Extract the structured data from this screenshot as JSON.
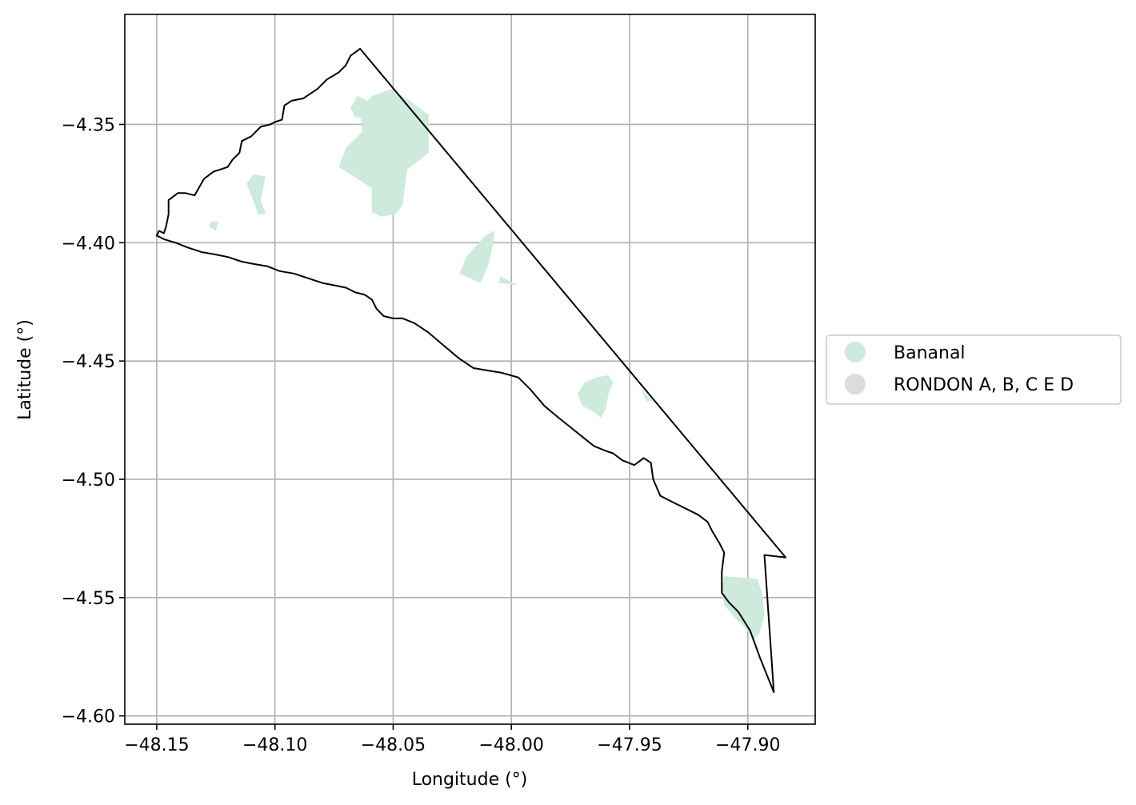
{
  "chart_data": {
    "type": "map",
    "xlabel": "Longitude (°)",
    "ylabel": "Latitude (°)",
    "xlim": [
      -48.1635,
      -47.8715
    ],
    "ylim": [
      -4.6035,
      -4.3035
    ],
    "xticks": [
      -48.15,
      -48.1,
      -48.05,
      -48.0,
      -47.95,
      -47.9
    ],
    "xtick_labels": [
      "−48.15",
      "−48.10",
      "−48.05",
      "−48.00",
      "−47.95",
      "−47.90"
    ],
    "yticks": [
      -4.35,
      -4.4,
      -4.45,
      -4.5,
      -4.55,
      -4.6
    ],
    "ytick_labels": [
      "−4.35",
      "−4.40",
      "−4.45",
      "−4.50",
      "−4.55",
      "−4.60"
    ],
    "grid": true,
    "legend": {
      "placement": "outside-right",
      "entries": [
        {
          "label": "Bananal",
          "color": "#cdeadc"
        },
        {
          "label": "RONDON A, B, C E D",
          "color": "#dcdcdc"
        }
      ]
    },
    "boundary": {
      "stroke": "#000000",
      "points": [
        [
          -48.15,
          -4.397
        ],
        [
          -48.149,
          -4.395
        ],
        [
          -48.147,
          -4.396
        ],
        [
          -48.146,
          -4.393
        ],
        [
          -48.145,
          -4.388
        ],
        [
          -48.145,
          -4.382
        ],
        [
          -48.141,
          -4.379
        ],
        [
          -48.138,
          -4.379
        ],
        [
          -48.134,
          -4.38
        ],
        [
          -48.13,
          -4.373
        ],
        [
          -48.126,
          -4.37
        ],
        [
          -48.123,
          -4.369
        ],
        [
          -48.12,
          -4.368
        ],
        [
          -48.118,
          -4.365
        ],
        [
          -48.115,
          -4.362
        ],
        [
          -48.114,
          -4.357
        ],
        [
          -48.11,
          -4.355
        ],
        [
          -48.106,
          -4.351
        ],
        [
          -48.102,
          -4.35
        ],
        [
          -48.1,
          -4.349
        ],
        [
          -48.097,
          -4.348
        ],
        [
          -48.096,
          -4.342
        ],
        [
          -48.093,
          -4.34
        ],
        [
          -48.088,
          -4.339
        ],
        [
          -48.082,
          -4.335
        ],
        [
          -48.078,
          -4.331
        ],
        [
          -48.073,
          -4.328
        ],
        [
          -48.07,
          -4.325
        ],
        [
          -48.068,
          -4.321
        ],
        [
          -48.064,
          -4.318
        ],
        [
          -47.884,
          -4.533
        ],
        [
          -47.893,
          -4.532
        ],
        [
          -47.889,
          -4.59
        ],
        [
          -47.895,
          -4.575
        ],
        [
          -47.899,
          -4.564
        ],
        [
          -47.904,
          -4.556
        ],
        [
          -47.908,
          -4.552
        ],
        [
          -47.911,
          -4.548
        ],
        [
          -47.911,
          -4.539
        ],
        [
          -47.91,
          -4.531
        ],
        [
          -47.912,
          -4.527
        ],
        [
          -47.915,
          -4.522
        ],
        [
          -47.917,
          -4.518
        ],
        [
          -47.921,
          -4.515
        ],
        [
          -47.927,
          -4.512
        ],
        [
          -47.931,
          -4.51
        ],
        [
          -47.937,
          -4.507
        ],
        [
          -47.94,
          -4.5
        ],
        [
          -47.941,
          -4.493
        ],
        [
          -47.944,
          -4.491
        ],
        [
          -47.948,
          -4.494
        ],
        [
          -47.953,
          -4.492
        ],
        [
          -47.957,
          -4.489
        ],
        [
          -47.96,
          -4.488
        ],
        [
          -47.965,
          -4.486
        ],
        [
          -47.97,
          -4.482
        ],
        [
          -47.975,
          -4.478
        ],
        [
          -47.98,
          -4.474
        ],
        [
          -47.986,
          -4.469
        ],
        [
          -47.992,
          -4.462
        ],
        [
          -47.997,
          -4.457
        ],
        [
          -48.004,
          -4.455
        ],
        [
          -48.01,
          -4.454
        ],
        [
          -48.016,
          -4.453
        ],
        [
          -48.022,
          -4.449
        ],
        [
          -48.028,
          -4.444
        ],
        [
          -48.035,
          -4.438
        ],
        [
          -48.041,
          -4.434
        ],
        [
          -48.046,
          -4.432
        ],
        [
          -48.05,
          -4.432
        ],
        [
          -48.054,
          -4.431
        ],
        [
          -48.057,
          -4.428
        ],
        [
          -48.059,
          -4.424
        ],
        [
          -48.062,
          -4.422
        ],
        [
          -48.066,
          -4.421
        ],
        [
          -48.07,
          -4.419
        ],
        [
          -48.075,
          -4.418
        ],
        [
          -48.08,
          -4.417
        ],
        [
          -48.086,
          -4.415
        ],
        [
          -48.092,
          -4.413
        ],
        [
          -48.098,
          -4.412
        ],
        [
          -48.103,
          -4.41
        ],
        [
          -48.109,
          -4.409
        ],
        [
          -48.114,
          -4.408
        ],
        [
          -48.12,
          -4.406
        ],
        [
          -48.125,
          -4.405
        ],
        [
          -48.131,
          -4.404
        ],
        [
          -48.137,
          -4.402
        ],
        [
          -48.142,
          -4.4
        ],
        [
          -48.147,
          -4.3985
        ],
        [
          -48.15,
          -4.397
        ]
      ]
    },
    "areas": [
      {
        "series": "Bananal",
        "points": [
          [
            -48.059,
            -4.338
          ],
          [
            -48.051,
            -4.335
          ],
          [
            -48.043,
            -4.34
          ],
          [
            -48.035,
            -4.346
          ],
          [
            -48.035,
            -4.362
          ],
          [
            -48.044,
            -4.369
          ],
          [
            -48.045,
            -4.376
          ],
          [
            -48.046,
            -4.384
          ],
          [
            -48.049,
            -4.388
          ],
          [
            -48.055,
            -4.389
          ],
          [
            -48.059,
            -4.387
          ],
          [
            -48.059,
            -4.377
          ],
          [
            -48.065,
            -4.373
          ],
          [
            -48.073,
            -4.368
          ],
          [
            -48.07,
            -4.36
          ],
          [
            -48.063,
            -4.353
          ],
          [
            -48.064,
            -4.344
          ]
        ]
      },
      {
        "series": "Bananal",
        "points": [
          [
            -48.065,
            -4.338
          ],
          [
            -48.061,
            -4.34
          ],
          [
            -48.062,
            -4.347
          ],
          [
            -48.066,
            -4.347
          ],
          [
            -48.068,
            -4.343
          ]
        ]
      },
      {
        "series": "Bananal",
        "points": [
          [
            -48.109,
            -4.371
          ],
          [
            -48.104,
            -4.372
          ],
          [
            -48.106,
            -4.382
          ],
          [
            -48.104,
            -4.388
          ],
          [
            -48.107,
            -4.388
          ],
          [
            -48.11,
            -4.38
          ],
          [
            -48.112,
            -4.375
          ]
        ]
      },
      {
        "series": "Bananal",
        "points": [
          [
            -48.127,
            -4.391
          ],
          [
            -48.124,
            -4.391
          ],
          [
            -48.125,
            -4.395
          ],
          [
            -48.128,
            -4.393
          ]
        ]
      },
      {
        "series": "Bananal",
        "points": [
          [
            -48.007,
            -4.395
          ],
          [
            -48.011,
            -4.397
          ],
          [
            -48.019,
            -4.406
          ],
          [
            -48.022,
            -4.413
          ],
          [
            -48.013,
            -4.417
          ],
          [
            -48.01,
            -4.41
          ],
          [
            -48.008,
            -4.402
          ]
        ]
      },
      {
        "series": "Bananal",
        "points": [
          [
            -48.005,
            -4.414
          ],
          [
            -47.997,
            -4.418
          ],
          [
            -48.005,
            -4.417
          ]
        ]
      },
      {
        "series": "Bananal",
        "points": [
          [
            -47.959,
            -4.456
          ],
          [
            -47.964,
            -4.457
          ],
          [
            -47.969,
            -4.459
          ],
          [
            -47.972,
            -4.464
          ],
          [
            -47.97,
            -4.469
          ],
          [
            -47.966,
            -4.471
          ],
          [
            -47.962,
            -4.474
          ],
          [
            -47.96,
            -4.47
          ],
          [
            -47.959,
            -4.464
          ],
          [
            -47.957,
            -4.459
          ]
        ]
      },
      {
        "series": "Bananal",
        "points": [
          [
            -47.945,
            -4.462
          ],
          [
            -47.94,
            -4.467
          ],
          [
            -47.943,
            -4.467
          ]
        ]
      },
      {
        "series": "Bananal",
        "points": [
          [
            -47.91,
            -4.541
          ],
          [
            -47.896,
            -4.542
          ],
          [
            -47.894,
            -4.548
          ],
          [
            -47.893,
            -4.557
          ],
          [
            -47.895,
            -4.565
          ],
          [
            -47.898,
            -4.568
          ],
          [
            -47.9,
            -4.564
          ],
          [
            -47.906,
            -4.558
          ],
          [
            -47.91,
            -4.553
          ],
          [
            -47.911,
            -4.548
          ]
        ]
      }
    ]
  }
}
